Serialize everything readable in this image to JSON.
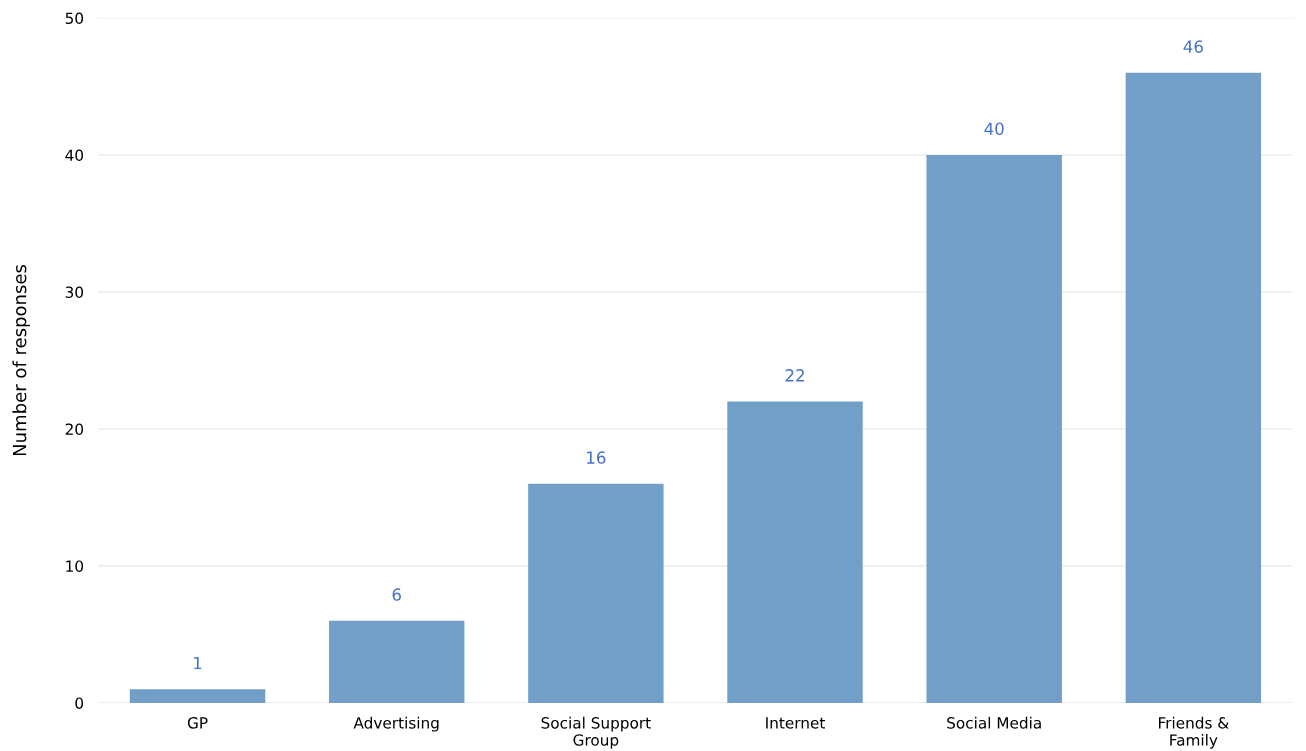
{
  "chart_data": {
    "type": "bar",
    "ylabel": "Number of responses",
    "categories": [
      "GP",
      "Advertising",
      "Social Support\nGroup",
      "Internet",
      "Social Media",
      "Friends &\nFamily"
    ],
    "values": [
      1,
      6,
      16,
      22,
      40,
      46
    ],
    "color": "#729fc8",
    "ylim": [
      0,
      50
    ],
    "yticks": [
      0,
      10,
      20,
      30,
      40,
      50
    ],
    "grid": "y",
    "data_labels": true
  }
}
